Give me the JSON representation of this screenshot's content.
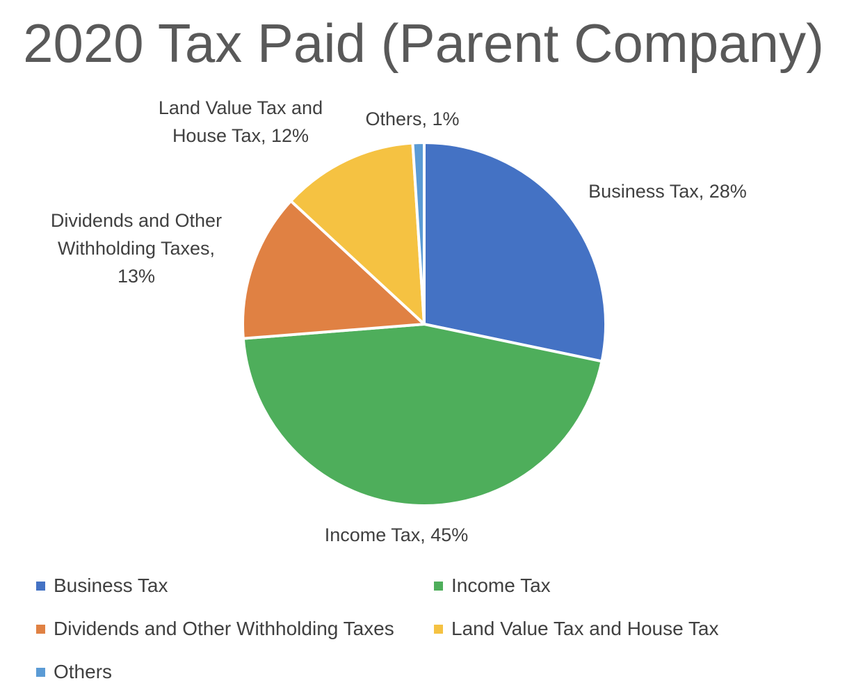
{
  "chart_data": {
    "type": "pie",
    "title": "2020 Tax Paid (Parent Company)",
    "slices": [
      {
        "name": "Business Tax",
        "value": 28,
        "label": "Business Tax, 28%",
        "label_lines": [
          "Business Tax, 28%"
        ],
        "color": "#4472C4"
      },
      {
        "name": "Income Tax",
        "value": 45,
        "label": "Income Tax, 45%",
        "label_lines": [
          "Income Tax, 45%"
        ],
        "color": "#4EAE5B"
      },
      {
        "name": "Dividends and Other Withholding Taxes",
        "value": 13,
        "label": "Dividends and Other Withholding Taxes, 13%",
        "label_lines": [
          "Dividends and Other",
          "Withholding Taxes,",
          "13%"
        ],
        "color": "#E08143"
      },
      {
        "name": "Land Value Tax and House Tax",
        "value": 12,
        "label": "Land Value Tax and House Tax, 12%",
        "label_lines": [
          "Land Value Tax and",
          "House Tax, 12%"
        ],
        "color": "#F5C242"
      },
      {
        "name": "Others",
        "value": 1,
        "label": "Others, 1%",
        "label_lines": [
          "Others, 1%"
        ],
        "color": "#5B9BD5"
      }
    ],
    "legend": {
      "placement": "bottom",
      "entries": [
        {
          "name": "Business Tax",
          "color": "#4472C4"
        },
        {
          "name": "Income Tax",
          "color": "#4EAE5B"
        },
        {
          "name": "Dividends and Other Withholding Taxes",
          "color": "#E08143"
        },
        {
          "name": "Land Value Tax and House Tax",
          "color": "#F5C242"
        },
        {
          "name": "Others",
          "color": "#5B9BD5"
        }
      ]
    }
  }
}
